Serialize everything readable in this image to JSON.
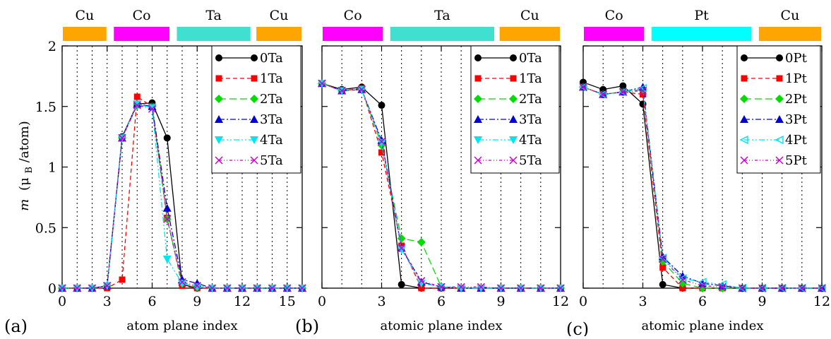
{
  "y_axis": {
    "label_m": "m",
    "label_open": "(μ",
    "label_sub": "B",
    "label_close": "/atom)",
    "ticks": [
      {
        "value": 0,
        "label": "0"
      },
      {
        "value": 0.5,
        "label": "0.5"
      },
      {
        "value": 1,
        "label": "1"
      },
      {
        "value": 1.5,
        "label": "1.5"
      },
      {
        "value": 2,
        "label": "2"
      }
    ],
    "ylim": [
      0,
      2
    ]
  },
  "chart_data": [
    {
      "type": "line",
      "panel_label": "(a)",
      "xlabel": "atom plane index",
      "xlim": [
        0,
        16
      ],
      "ylim": [
        0,
        2
      ],
      "x_ticks": [
        0,
        3,
        6,
        9,
        12,
        15
      ],
      "dotted_grid_x": [
        1,
        2,
        3,
        4,
        5,
        6,
        7,
        8,
        9,
        10,
        11,
        12,
        13,
        14,
        15
      ],
      "layers": [
        {
          "name": "Cu",
          "from": 0,
          "to": 3,
          "color": "#ffa500"
        },
        {
          "name": "Co",
          "from": 3.4,
          "to": 7.2,
          "color": "#ff00ff"
        },
        {
          "name": "Ta",
          "from": 7.6,
          "to": 12.6,
          "color": "#40e0d0"
        },
        {
          "name": "Cu",
          "from": 12.9,
          "to": 16,
          "color": "#ffa500"
        }
      ],
      "series": [
        {
          "name": "0Ta",
          "color": "#000000",
          "marker": "circle",
          "dash": "",
          "x": [
            0,
            1,
            2,
            3,
            4,
            5,
            6,
            7,
            8,
            9,
            10,
            11,
            12,
            13,
            14,
            15,
            16
          ],
          "y": [
            0,
            0,
            0,
            0.02,
            1.25,
            1.52,
            1.53,
            1.24,
            0.03,
            0,
            0,
            0,
            0,
            0,
            0,
            0,
            0
          ]
        },
        {
          "name": "1Ta",
          "color": "#ff0000",
          "marker": "square",
          "dash": "6,4",
          "x": [
            0,
            1,
            2,
            3,
            4,
            5,
            6,
            7,
            8,
            9,
            10,
            11,
            12,
            13,
            14,
            15,
            16
          ],
          "y": [
            0,
            0,
            0,
            0,
            0.07,
            1.58,
            1.5,
            0.58,
            0.02,
            0,
            0,
            0,
            0,
            0,
            0,
            0,
            0
          ]
        },
        {
          "name": "2Ta",
          "color": "#00dd00",
          "marker": "diamond",
          "dash": "10,5",
          "x": [
            0,
            1,
            2,
            3,
            4,
            5,
            6,
            7,
            8,
            9,
            10,
            11,
            12,
            13,
            14,
            15,
            16
          ],
          "y": [
            0,
            0,
            0,
            0.02,
            1.24,
            1.51,
            1.5,
            0.57,
            0.04,
            0.01,
            0,
            0,
            0,
            0,
            0,
            0,
            0
          ]
        },
        {
          "name": "3Ta",
          "color": "#0000dd",
          "marker": "triangle",
          "dash": "8,3,2,3",
          "x": [
            0,
            1,
            2,
            3,
            4,
            5,
            6,
            7,
            8,
            9,
            10,
            11,
            12,
            13,
            14,
            15,
            16
          ],
          "y": [
            0,
            0,
            0,
            0.02,
            1.24,
            1.52,
            1.5,
            0.66,
            0.07,
            0.04,
            0,
            0,
            0,
            0,
            0,
            0,
            0
          ]
        },
        {
          "name": "4Ta",
          "color": "#00e5ee",
          "marker": "triangle-down",
          "dash": "8,3,2,3,2,3",
          "x": [
            0,
            1,
            2,
            3,
            4,
            5,
            6,
            7,
            8,
            9,
            10,
            11,
            12,
            13,
            14,
            15,
            16
          ],
          "y": [
            0,
            0,
            0,
            0.02,
            1.24,
            1.52,
            1.49,
            0.24,
            0.04,
            0.01,
            0,
            0,
            0,
            0,
            0,
            0,
            0
          ]
        },
        {
          "name": "5Ta",
          "color": "#cc00cc",
          "marker": "x",
          "dash": "4,3,1,3,1,3",
          "x": [
            0,
            1,
            2,
            3,
            4,
            5,
            6,
            7,
            8,
            9,
            10,
            11,
            12,
            13,
            14,
            15,
            16
          ],
          "y": [
            0,
            0,
            0,
            0.02,
            1.24,
            1.51,
            1.48,
            0.57,
            0.05,
            0.02,
            0,
            0,
            0,
            0,
            0,
            0,
            0
          ]
        }
      ]
    },
    {
      "type": "line",
      "panel_label": "(b)",
      "xlabel": "atomic plane index",
      "xlim": [
        0,
        12
      ],
      "ylim": [
        0,
        2
      ],
      "x_ticks": [
        0,
        3,
        6,
        9,
        12
      ],
      "dotted_grid_x": [
        1,
        2,
        3,
        4,
        5,
        6,
        7,
        8,
        9,
        10,
        11
      ],
      "layers": [
        {
          "name": "Co",
          "from": 0,
          "to": 3.1,
          "color": "#ff00ff"
        },
        {
          "name": "Ta",
          "from": 3.4,
          "to": 8.7,
          "color": "#40e0d0"
        },
        {
          "name": "Cu",
          "from": 8.9,
          "to": 12,
          "color": "#ffa500"
        }
      ],
      "series": [
        {
          "name": "0Ta",
          "color": "#000000",
          "marker": "circle",
          "dash": "",
          "x": [
            0,
            1,
            2,
            3,
            4,
            5,
            6,
            7,
            8,
            9,
            10,
            11,
            12
          ],
          "y": [
            1.69,
            1.64,
            1.66,
            1.51,
            0.03,
            0,
            0,
            0,
            0,
            0,
            0,
            0,
            0
          ]
        },
        {
          "name": "1Ta",
          "color": "#ff0000",
          "marker": "square",
          "dash": "6,4",
          "x": [
            0,
            1,
            2,
            3,
            4,
            5,
            6,
            7,
            8,
            9,
            10,
            11,
            12
          ],
          "y": [
            1.69,
            1.63,
            1.65,
            1.12,
            0.35,
            0,
            0,
            0,
            0,
            0,
            0,
            0,
            0
          ]
        },
        {
          "name": "2Ta",
          "color": "#00dd00",
          "marker": "diamond",
          "dash": "10,5",
          "x": [
            0,
            1,
            2,
            3,
            4,
            5,
            6,
            7,
            8,
            9,
            10,
            11,
            12
          ],
          "y": [
            1.69,
            1.63,
            1.64,
            1.18,
            0.41,
            0.38,
            0.01,
            0,
            0,
            0,
            0,
            0,
            0
          ]
        },
        {
          "name": "3Ta",
          "color": "#0000dd",
          "marker": "triangle",
          "dash": "8,3,2,3",
          "x": [
            0,
            1,
            2,
            3,
            4,
            5,
            6,
            7,
            8,
            9,
            10,
            11,
            12
          ],
          "y": [
            1.69,
            1.63,
            1.64,
            1.22,
            0.33,
            0.05,
            0.01,
            0,
            0,
            0,
            0,
            0,
            0
          ]
        },
        {
          "name": "4Ta",
          "color": "#00e5ee",
          "marker": "triangle-down",
          "dash": "8,3,2,3,2,3",
          "x": [
            0,
            1,
            2,
            3,
            4,
            5,
            6,
            7,
            8,
            9,
            10,
            11,
            12
          ],
          "y": [
            1.69,
            1.63,
            1.64,
            1.2,
            0.32,
            0.04,
            0.01,
            0,
            0,
            0,
            0,
            0,
            0
          ]
        },
        {
          "name": "5Ta",
          "color": "#cc00cc",
          "marker": "x",
          "dash": "4,3,1,3,1,3",
          "x": [
            0,
            1,
            2,
            3,
            4,
            5,
            6,
            7,
            8,
            9,
            10,
            11,
            12
          ],
          "y": [
            1.69,
            1.63,
            1.64,
            1.21,
            0.33,
            0.06,
            0.01,
            0.01,
            0.01,
            0,
            0,
            0,
            0
          ]
        }
      ]
    },
    {
      "type": "line",
      "panel_label": "(c)",
      "xlabel": "atomic plane index",
      "xlim": [
        0,
        12
      ],
      "ylim": [
        0,
        2
      ],
      "x_ticks": [
        0,
        3,
        6,
        9,
        12
      ],
      "dotted_grid_x": [
        1,
        2,
        3,
        4,
        5,
        6,
        7,
        8,
        9,
        10,
        11
      ],
      "layers": [
        {
          "name": "Co",
          "from": 0,
          "to": 3.1,
          "color": "#ff00ff"
        },
        {
          "name": "Pt",
          "from": 3.4,
          "to": 8.5,
          "color": "#00ffff"
        },
        {
          "name": "Cu",
          "from": 8.8,
          "to": 12,
          "color": "#ffa500"
        }
      ],
      "series": [
        {
          "name": "0Pt",
          "color": "#000000",
          "marker": "circle",
          "dash": "",
          "x": [
            0,
            1,
            2,
            3,
            4,
            5,
            6,
            7,
            8,
            9,
            10,
            11,
            12
          ],
          "y": [
            1.7,
            1.64,
            1.67,
            1.52,
            0.03,
            0,
            0,
            0,
            0,
            0,
            0,
            0,
            0
          ]
        },
        {
          "name": "1Pt",
          "color": "#ff0000",
          "marker": "square",
          "dash": "6,4",
          "x": [
            0,
            1,
            2,
            3,
            4,
            5,
            6,
            7,
            8,
            9,
            10,
            11,
            12
          ],
          "y": [
            1.66,
            1.6,
            1.62,
            1.6,
            0.17,
            0,
            0,
            0,
            0,
            0,
            0,
            0,
            0
          ]
        },
        {
          "name": "2Pt",
          "color": "#00dd00",
          "marker": "diamond",
          "dash": "10,5",
          "x": [
            0,
            1,
            2,
            3,
            4,
            5,
            6,
            7,
            8,
            9,
            10,
            11,
            12
          ],
          "y": [
            1.66,
            1.6,
            1.62,
            1.64,
            0.22,
            0.04,
            0,
            0,
            0,
            0,
            0,
            0,
            0
          ]
        },
        {
          "name": "3Pt",
          "color": "#0000dd",
          "marker": "triangle",
          "dash": "8,3,2,3",
          "x": [
            0,
            1,
            2,
            3,
            4,
            5,
            6,
            7,
            8,
            9,
            10,
            11,
            12
          ],
          "y": [
            1.66,
            1.6,
            1.62,
            1.66,
            0.26,
            0.1,
            0.04,
            0.02,
            0,
            0,
            0,
            0,
            0
          ]
        },
        {
          "name": "4Pt",
          "color": "#00e5ee",
          "marker": "triangle-open",
          "dash": "8,3,2,3,2,3",
          "x": [
            0,
            1,
            2,
            3,
            4,
            5,
            6,
            7,
            8,
            9,
            10,
            11,
            12
          ],
          "y": [
            1.66,
            1.6,
            1.62,
            1.65,
            0.25,
            0.08,
            0.05,
            0.03,
            0,
            0,
            0,
            0,
            0
          ]
        },
        {
          "name": "5Pt",
          "color": "#cc00cc",
          "marker": "x",
          "dash": "4,3,1,3,1,3",
          "x": [
            0,
            1,
            2,
            3,
            4,
            5,
            6,
            7,
            8,
            9,
            10,
            11,
            12
          ],
          "y": [
            1.66,
            1.6,
            1.62,
            1.63,
            0.24,
            0.07,
            0.02,
            0.01,
            0,
            0,
            0,
            0,
            0
          ]
        }
      ]
    }
  ]
}
